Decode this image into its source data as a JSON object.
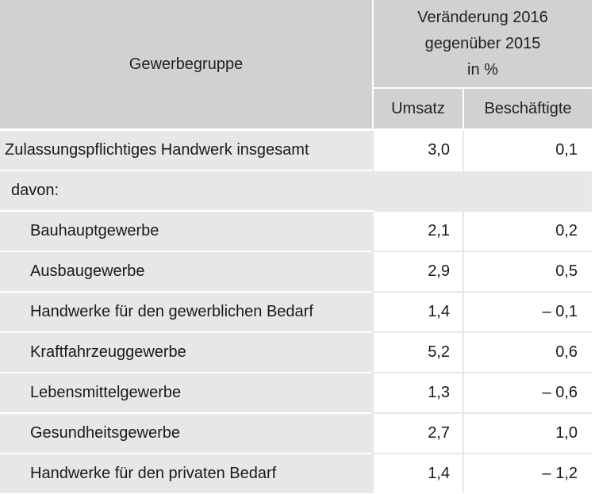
{
  "header": {
    "group_label": "Gewerbegruppe",
    "change_line1": "Veränderung 2016",
    "change_line2": "gegenüber 2015",
    "change_line3": "in %",
    "col_revenue": "Umsatz",
    "col_employees": "Beschäftigte"
  },
  "total_row": {
    "label": "Zulassungspflichtiges Handwerk insgesamt",
    "umsatz": "3,0",
    "beschaeftigte": "0,1"
  },
  "davon_label": "davon:",
  "rows": [
    {
      "label": "Bauhauptgewerbe",
      "umsatz": "2,1",
      "beschaeftigte": "0,2"
    },
    {
      "label": "Ausbaugewerbe",
      "umsatz": "2,9",
      "beschaeftigte": "0,5"
    },
    {
      "label": "Handwerke für den gewerblichen Bedarf",
      "umsatz": "1,4",
      "beschaeftigte": "– 0,1"
    },
    {
      "label": "Kraftfahrzeuggewerbe",
      "umsatz": "5,2",
      "beschaeftigte": "0,6"
    },
    {
      "label": "Lebensmittelgewerbe",
      "umsatz": "1,3",
      "beschaeftigte": "– 0,6"
    },
    {
      "label": "Gesundheitsgewerbe",
      "umsatz": "2,7",
      "beschaeftigte": "1,0"
    },
    {
      "label": "Handwerke für den privaten Bedarf",
      "umsatz": "1,4",
      "beschaeftigte": "– 1,2"
    }
  ]
}
